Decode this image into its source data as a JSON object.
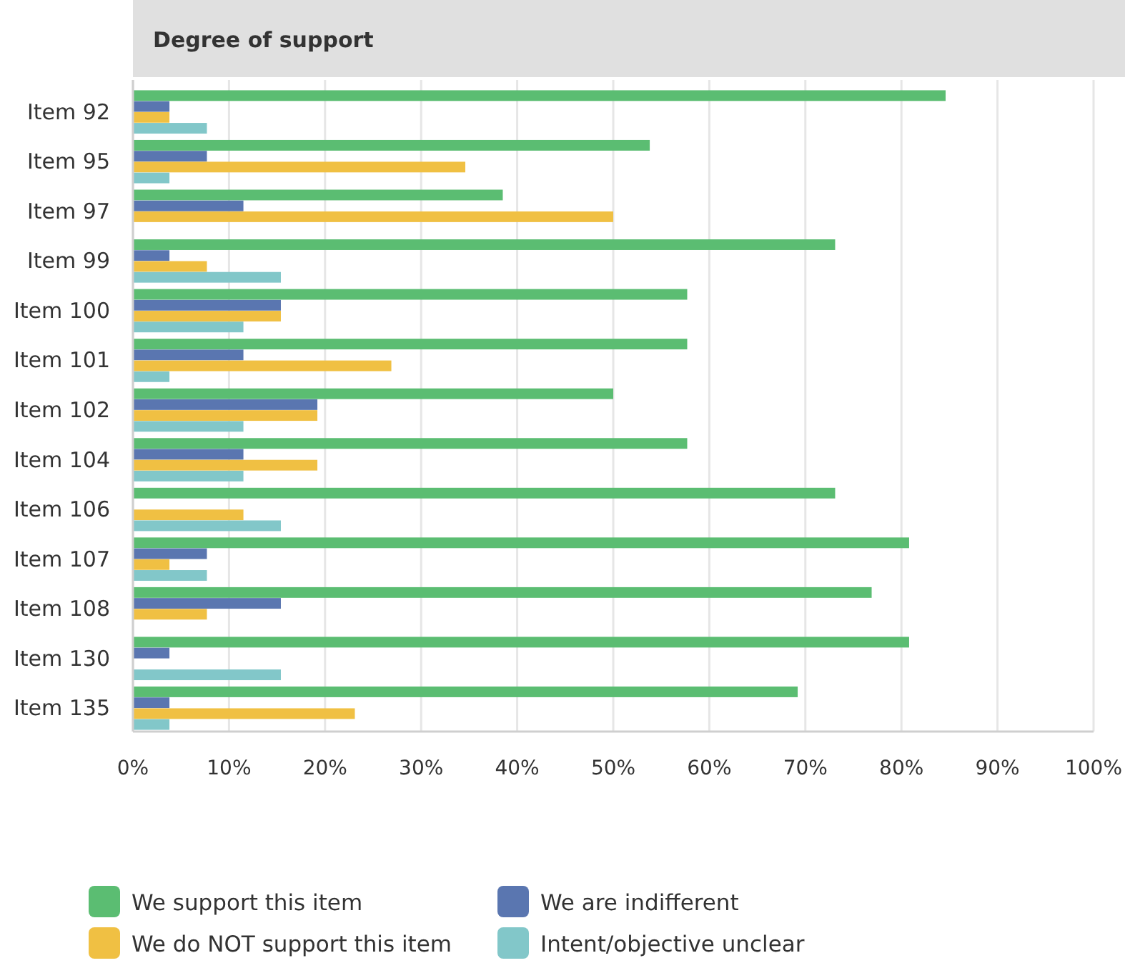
{
  "chart_data": {
    "type": "bar",
    "orientation": "horizontal",
    "title": "Degree of support",
    "categories": [
      "Item 92",
      "Item 95",
      "Item 97",
      "Item 99",
      "Item 100",
      "Item 101",
      "Item 102",
      "Item 104",
      "Item 106",
      "Item 107",
      "Item 108",
      "Item 130",
      "Item 135"
    ],
    "series": [
      {
        "name": "We support this item",
        "color": "#5bbd72",
        "values": [
          84.6,
          53.8,
          38.5,
          73.1,
          57.7,
          57.7,
          50,
          57.7,
          73.1,
          80.8,
          76.9,
          80.8,
          69.2
        ]
      },
      {
        "name": "We are indifferent",
        "color": "#5a76b0",
        "values": [
          3.8,
          7.7,
          11.5,
          3.8,
          15.4,
          11.5,
          19.2,
          11.5,
          0,
          7.7,
          15.4,
          3.8,
          3.8
        ]
      },
      {
        "name": "We do NOT support this item",
        "color": "#f0c043",
        "values": [
          3.8,
          34.6,
          50,
          7.7,
          15.4,
          26.9,
          19.2,
          19.2,
          11.5,
          3.8,
          7.7,
          0,
          23.1
        ]
      },
      {
        "name": "Intent/objective unclear",
        "color": "#82c7c9",
        "values": [
          7.7,
          3.8,
          0,
          15.4,
          11.5,
          3.8,
          11.5,
          11.5,
          15.4,
          7.7,
          0,
          15.4,
          3.8
        ]
      }
    ],
    "xlim": [
      0,
      100
    ],
    "xticks": [
      {
        "value": 0,
        "label": "0%"
      },
      {
        "value": 10,
        "label": "10%"
      },
      {
        "value": 20,
        "label": "20%"
      },
      {
        "value": 30,
        "label": "30%"
      },
      {
        "value": 40,
        "label": "40%"
      },
      {
        "value": 50,
        "label": "50%"
      },
      {
        "value": 60,
        "label": "60%"
      },
      {
        "value": 70,
        "label": "70%"
      },
      {
        "value": 80,
        "label": "80%"
      },
      {
        "value": 90,
        "label": "90%"
      },
      {
        "value": 100,
        "label": "100%"
      }
    ],
    "grid": "x",
    "legend": "bottom"
  }
}
